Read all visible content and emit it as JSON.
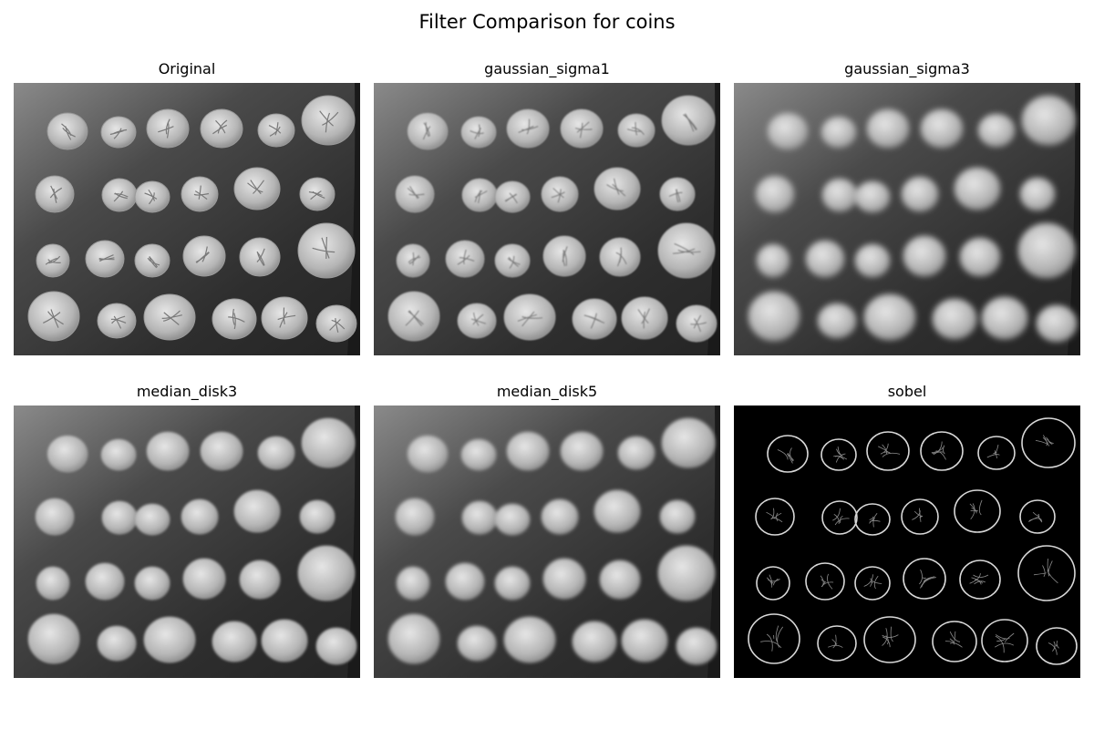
{
  "figure": {
    "title": "Filter Comparison for coins"
  },
  "panels": [
    {
      "id": "original",
      "title": "Original"
    },
    {
      "id": "gaussian1",
      "title": "gaussian_sigma1"
    },
    {
      "id": "gaussian3",
      "title": "gaussian_sigma3"
    },
    {
      "id": "median3",
      "title": "median_disk3"
    },
    {
      "id": "median5",
      "title": "median_disk5"
    },
    {
      "id": "sobel",
      "title": "sobel"
    }
  ]
}
